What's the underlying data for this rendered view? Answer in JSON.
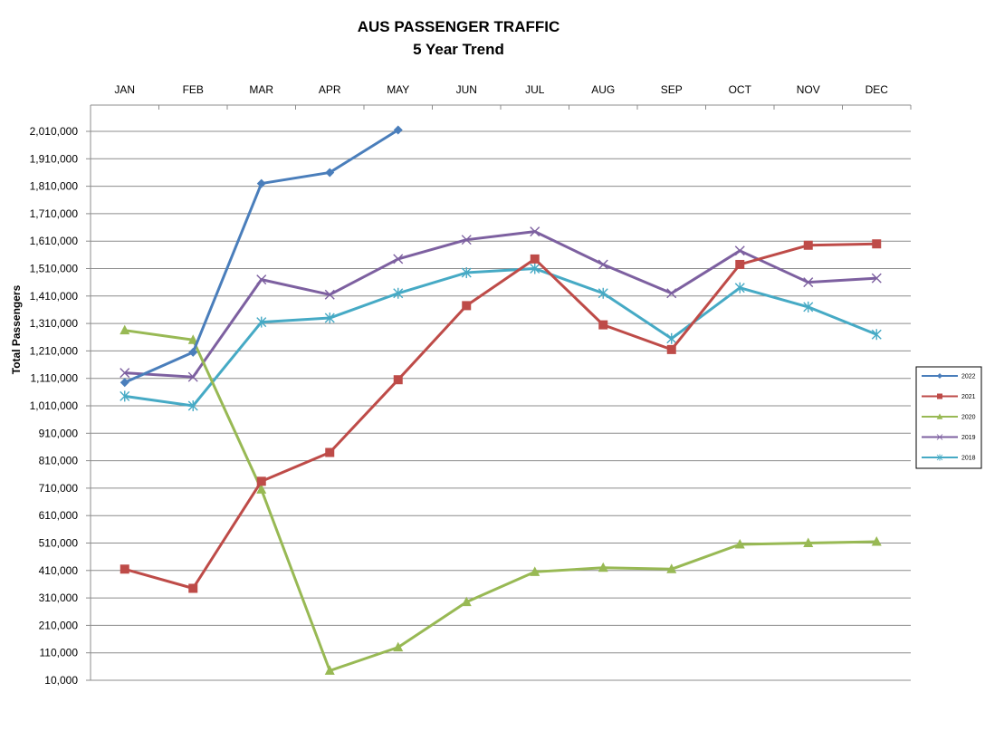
{
  "chart_data": {
    "type": "line",
    "title": "AUS PASSENGER TRAFFIC",
    "subtitle": "5 Year Trend",
    "xlabel": "",
    "ylabel": "Total Passengers",
    "categories": [
      "JAN",
      "FEB",
      "MAR",
      "APR",
      "MAY",
      "JUN",
      "JUL",
      "AUG",
      "SEP",
      "OCT",
      "NOV",
      "DEC"
    ],
    "x_axis_position": "top",
    "ylim": [
      10000,
      2010000
    ],
    "yticks": [
      10000,
      110000,
      210000,
      310000,
      410000,
      510000,
      610000,
      710000,
      810000,
      910000,
      1010000,
      1110000,
      1210000,
      1310000,
      1410000,
      1510000,
      1610000,
      1710000,
      1810000,
      1910000,
      2010000
    ],
    "ytick_labels": [
      "10,000",
      "110,000",
      "210,000",
      "310,000",
      "410,000",
      "510,000",
      "610,000",
      "710,000",
      "810,000",
      "910,000",
      "1,010,000",
      "1,110,000",
      "1,210,000",
      "1,310,000",
      "1,410,000",
      "1,510,000",
      "1,610,000",
      "1,710,000",
      "1,810,000",
      "1,910,000",
      "2,010,000"
    ],
    "grid": true,
    "legend_position": "right",
    "series": [
      {
        "name": "2022",
        "color": "#4a7ebb",
        "marker": "diamond",
        "values": [
          1095000,
          1205000,
          1820000,
          1860000,
          2015000,
          null,
          null,
          null,
          null,
          null,
          null,
          null
        ]
      },
      {
        "name": "2021",
        "color": "#be4b48",
        "marker": "square",
        "values": [
          415000,
          345000,
          735000,
          840000,
          1105000,
          1375000,
          1545000,
          1305000,
          1215000,
          1525000,
          1595000,
          1600000
        ]
      },
      {
        "name": "2020",
        "color": "#98b954",
        "marker": "triangle",
        "values": [
          1285000,
          1250000,
          705000,
          45000,
          130000,
          295000,
          405000,
          420000,
          415000,
          505000,
          510000,
          515000
        ]
      },
      {
        "name": "2019",
        "color": "#7d60a0",
        "marker": "x",
        "values": [
          1130000,
          1115000,
          1470000,
          1415000,
          1545000,
          1615000,
          1645000,
          1525000,
          1420000,
          1575000,
          1460000,
          1475000
        ]
      },
      {
        "name": "2018",
        "color": "#46aac5",
        "marker": "asterisk",
        "values": [
          1045000,
          1010000,
          1315000,
          1330000,
          1420000,
          1495000,
          1510000,
          1420000,
          1255000,
          1440000,
          1370000,
          1270000
        ]
      }
    ]
  }
}
